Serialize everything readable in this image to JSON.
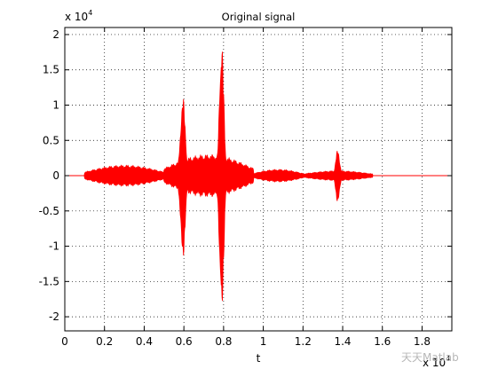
{
  "chart_data": {
    "type": "line",
    "title": "Original signal",
    "xlabel": "t",
    "ylabel": "",
    "x_range": [
      0,
      19500
    ],
    "y_range": [
      -22000,
      21000
    ],
    "x_exponent_base": "x 10",
    "x_exponent_power": "4",
    "y_exponent_base": "x 10",
    "y_exponent_power": "4",
    "x_ticks": [
      {
        "value": 0,
        "label": "0"
      },
      {
        "value": 2000,
        "label": "0.2"
      },
      {
        "value": 4000,
        "label": "0.4"
      },
      {
        "value": 6000,
        "label": "0.6"
      },
      {
        "value": 8000,
        "label": "0.8"
      },
      {
        "value": 10000,
        "label": "1"
      },
      {
        "value": 12000,
        "label": "1.2"
      },
      {
        "value": 14000,
        "label": "1.4"
      },
      {
        "value": 16000,
        "label": "1.6"
      },
      {
        "value": 18000,
        "label": "1.8"
      }
    ],
    "y_ticks": [
      {
        "value": -20000,
        "label": "-2"
      },
      {
        "value": -15000,
        "label": "-1.5"
      },
      {
        "value": -10000,
        "label": "-1"
      },
      {
        "value": -5000,
        "label": "-0.5"
      },
      {
        "value": 0,
        "label": "0"
      },
      {
        "value": 5000,
        "label": "0.5"
      },
      {
        "value": 10000,
        "label": "1"
      },
      {
        "value": 15000,
        "label": "1.5"
      },
      {
        "value": 20000,
        "label": "2"
      }
    ],
    "grid": "dotted",
    "series": [
      {
        "color": "#ff0000",
        "envelope_bursts": [
          {
            "center": 5950,
            "peak": 11300,
            "trough": -11800
          },
          {
            "center": 7900,
            "peak": 19800,
            "trough": -20000
          },
          {
            "center": 13750,
            "peak": 3700,
            "trough": -3800
          }
        ],
        "envelope_background": [
          {
            "from": 1000,
            "to": 5000,
            "amplitude": 1500
          },
          {
            "from": 5000,
            "to": 9500,
            "amplitude": 3000
          },
          {
            "from": 9500,
            "to": 12000,
            "amplitude": 900
          },
          {
            "from": 12000,
            "to": 15500,
            "amplitude": 700
          }
        ]
      }
    ]
  },
  "watermark": {
    "text": "天天Matlab"
  }
}
